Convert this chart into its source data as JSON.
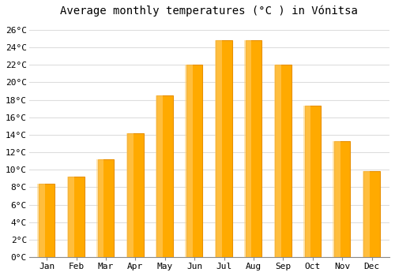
{
  "months": [
    "Jan",
    "Feb",
    "Mar",
    "Apr",
    "May",
    "Jun",
    "Jul",
    "Aug",
    "Sep",
    "Oct",
    "Nov",
    "Dec"
  ],
  "values": [
    8.4,
    9.2,
    11.2,
    14.2,
    18.5,
    22.0,
    24.8,
    24.8,
    22.0,
    17.3,
    13.3,
    9.8
  ],
  "title": "Average monthly temperatures (°C ) in Vónitsa",
  "bar_color": "#FFAA00",
  "bar_edge_color": "#E89000",
  "ylim": [
    0,
    27
  ],
  "ytick_max": 26,
  "ytick_step": 2,
  "background_color": "#ffffff",
  "plot_bg_color": "#ffffff",
  "grid_color": "#dddddd",
  "title_fontsize": 10,
  "tick_fontsize": 8,
  "bar_width": 0.55
}
